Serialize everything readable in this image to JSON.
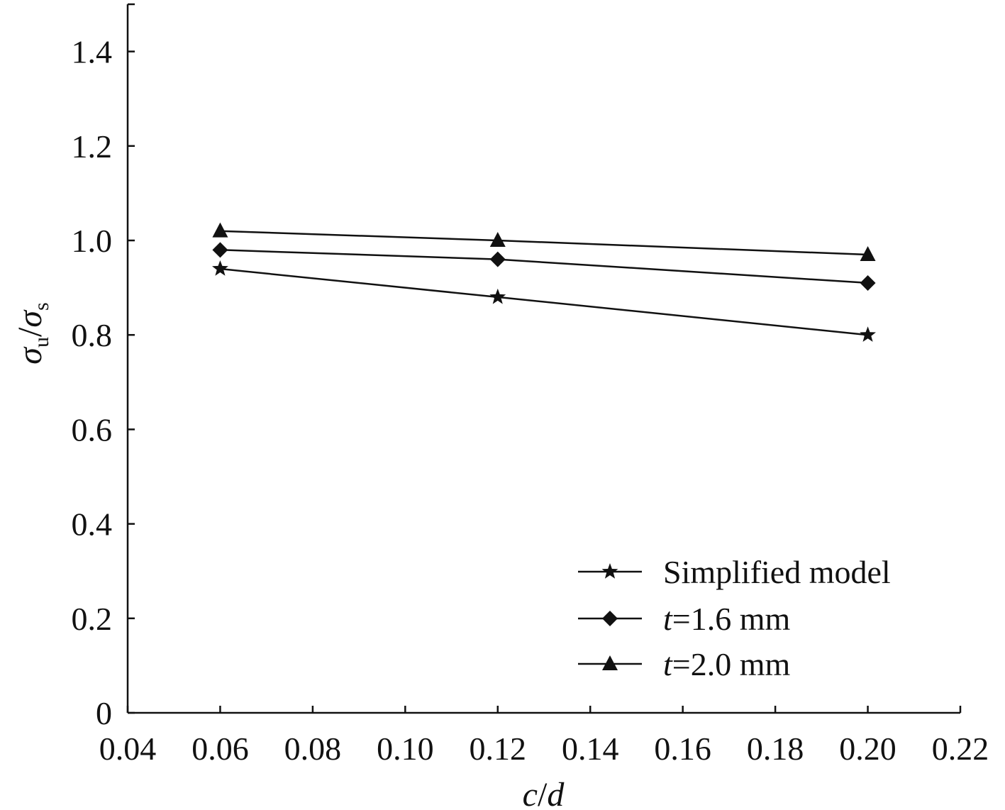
{
  "chart_data": {
    "type": "line",
    "title": "",
    "xlabel": "c/d",
    "xlabel_parts": {
      "left": "c",
      "sep": "/",
      "right": "d"
    },
    "ylabel": "σu/σs",
    "ylabel_parts": {
      "num": "σ",
      "num_sub": "u",
      "sep": "/",
      "den": "σ",
      "den_sub": "s"
    },
    "xlim": [
      0.04,
      0.22
    ],
    "ylim": [
      0,
      1.5
    ],
    "x_ticks": [
      0.04,
      0.06,
      0.08,
      0.1,
      0.12,
      0.14,
      0.16,
      0.18,
      0.2,
      0.22
    ],
    "x_tick_labels": [
      "0.04",
      "0.06",
      "0.08",
      "0.10",
      "0.12",
      "0.14",
      "0.16",
      "0.18",
      "0.20",
      "0.22"
    ],
    "y_ticks": [
      0,
      0.2,
      0.4,
      0.6,
      0.8,
      1.0,
      1.2,
      1.4
    ],
    "y_tick_labels": [
      "0",
      "0.2",
      "0.4",
      "0.6",
      "0.8",
      "1.0",
      "1.2",
      "1.4"
    ],
    "grid": false,
    "legend_position": "bottom-right",
    "series": [
      {
        "name": "Simplified model",
        "legend_prefix": "",
        "legend_text": "Simplified model",
        "marker": "star",
        "x": [
          0.06,
          0.12,
          0.2
        ],
        "values": [
          0.94,
          0.88,
          0.8
        ]
      },
      {
        "name": "t=1.6 mm",
        "legend_prefix": "t",
        "legend_text": "=1.6 mm",
        "marker": "diamond",
        "x": [
          0.06,
          0.12,
          0.2
        ],
        "values": [
          0.98,
          0.96,
          0.91
        ]
      },
      {
        "name": "t=2.0 mm",
        "legend_prefix": "t",
        "legend_text": "=2.0 mm",
        "marker": "triangle",
        "x": [
          0.06,
          0.12,
          0.2
        ],
        "values": [
          1.02,
          1.0,
          0.97
        ]
      }
    ]
  },
  "colors": {
    "ink": "#111111",
    "background": "#ffffff"
  }
}
